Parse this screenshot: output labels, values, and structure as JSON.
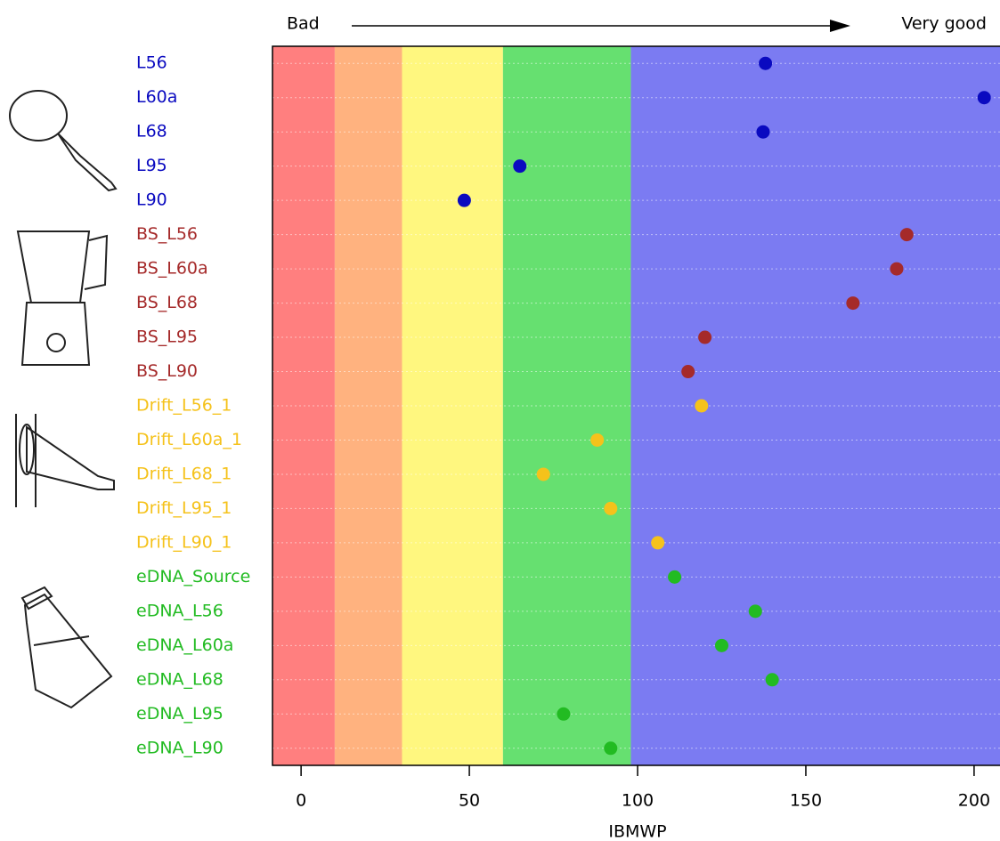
{
  "chart_data": {
    "type": "dot",
    "left_label": "Bad",
    "right_label": "Very good",
    "xlabel": "IBMWP",
    "xlim": [
      -8.5,
      207.7
    ],
    "xticks": [
      0,
      50,
      100,
      150,
      200
    ],
    "bands": [
      {
        "from": -8.5,
        "to": 10,
        "color": "#ff7f7f"
      },
      {
        "from": 10,
        "to": 30,
        "color": "#ffb27f"
      },
      {
        "from": 30,
        "to": 60,
        "color": "#fff77f"
      },
      {
        "from": 60,
        "to": 98,
        "color": "#66e070"
      },
      {
        "from": 98,
        "to": 207.7,
        "color": "#7b7bf2"
      }
    ],
    "series": [
      {
        "color": "#0a0ac0",
        "categories": [
          "L56",
          "L60a",
          "L68",
          "L95",
          "L90"
        ],
        "values": [
          138,
          203,
          137.3,
          65,
          48.5
        ]
      },
      {
        "color": "#a52a2a",
        "categories": [
          "BS_L56",
          "BS_L60a",
          "BS_L68",
          "BS_L95",
          "BS_L90"
        ],
        "values": [
          180,
          177,
          164,
          120,
          115
        ]
      },
      {
        "color": "#f5c21b",
        "categories": [
          "Drift_L56_1",
          "Drift_L60a_1",
          "Drift_L68_1",
          "Drift_L95_1",
          "Drift_L90_1"
        ],
        "values": [
          119,
          88,
          72,
          92,
          106
        ]
      },
      {
        "color": "#22bb22",
        "categories": [
          "eDNA_Source",
          "eDNA_L56",
          "eDNA_L60a",
          "eDNA_L68",
          "eDNA_L95",
          "eDNA_L90"
        ],
        "values": [
          111,
          135,
          125,
          140,
          78,
          92
        ]
      }
    ]
  }
}
